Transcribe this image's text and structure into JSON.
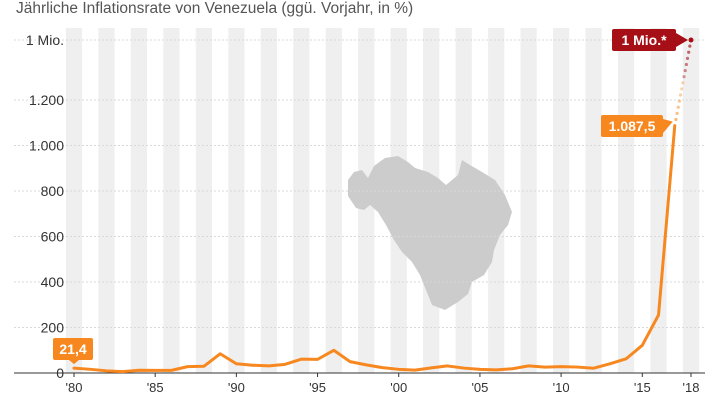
{
  "chart_data": {
    "type": "line",
    "title": "Jährliche Inflationsrate von Venezuela (ggü. Vorjahr, in %)",
    "y_ticks": [
      {
        "value": 0,
        "label": "0"
      },
      {
        "value": 200,
        "label": "200"
      },
      {
        "value": 400,
        "label": "400"
      },
      {
        "value": 600,
        "label": "600"
      },
      {
        "value": 800,
        "label": "800"
      },
      {
        "value": 1000,
        "label": "1.000"
      },
      {
        "value": 1200,
        "label": "1.200"
      }
    ],
    "y_break_label": "1 Mio.",
    "ylim": [
      0,
      1200
    ],
    "x_ticks": [
      {
        "year": 1980,
        "label": "'80"
      },
      {
        "year": 1985,
        "label": "'85"
      },
      {
        "year": 1990,
        "label": "'90"
      },
      {
        "year": 1995,
        "label": "'95"
      },
      {
        "year": 2000,
        "label": "'00"
      },
      {
        "year": 2005,
        "label": "'05"
      },
      {
        "year": 2010,
        "label": "'10"
      },
      {
        "year": 2015,
        "label": "'15"
      },
      {
        "year": 2018,
        "label": "'18"
      }
    ],
    "x": [
      1980,
      1981,
      1982,
      1983,
      1984,
      1985,
      1986,
      1987,
      1988,
      1989,
      1990,
      1991,
      1992,
      1993,
      1994,
      1995,
      1996,
      1997,
      1998,
      1999,
      2000,
      2001,
      2002,
      2003,
      2004,
      2005,
      2006,
      2007,
      2008,
      2009,
      2010,
      2011,
      2012,
      2013,
      2014,
      2015,
      2016,
      2017
    ],
    "values": [
      21.4,
      16.2,
      9.6,
      6.2,
      12.2,
      11.4,
      11.5,
      28.1,
      29.5,
      84.5,
      40.7,
      34.2,
      31.4,
      38.1,
      60.8,
      59.9,
      99.9,
      50.0,
      35.8,
      23.6,
      16.2,
      12.5,
      22.4,
      31.1,
      21.7,
      16.0,
      13.7,
      18.7,
      31.4,
      26.0,
      28.2,
      26.1,
      21.1,
      40.6,
      62.2,
      121.7,
      254.9,
      1087.5
    ],
    "projection": {
      "year": 2018,
      "value": 1000000,
      "label": "1 Mio.*"
    },
    "annotations": [
      {
        "year": 1980,
        "text": "21,4"
      },
      {
        "year": 2017,
        "text": "1.087,5"
      }
    ],
    "grid": "vertical-bands",
    "colors": {
      "line": "#f7881f",
      "projection_label": "#a50f15",
      "bands": "#efefef",
      "map": "#cccccc"
    },
    "decoration": "venezuela-map"
  }
}
